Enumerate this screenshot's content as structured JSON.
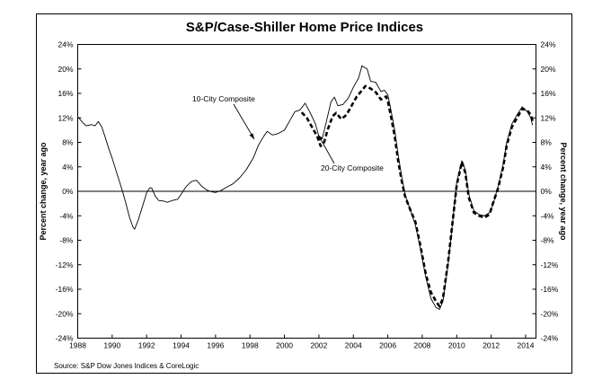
{
  "chart_data": {
    "type": "line",
    "title": "S&P/Case-Shiller Home Price Indices",
    "ylabel_left": "Percent change, year ago",
    "ylabel_right": "Percent change, year ago",
    "xlabel": "",
    "source": "Source: S&P Dow Jones Indices & CoreLogic",
    "xlim": [
      1988,
      2014.6
    ],
    "ylim": [
      -24,
      24
    ],
    "x_ticks": [
      "1988",
      "1990",
      "1992",
      "1994",
      "1996",
      "1998",
      "2000",
      "2002",
      "2004",
      "2006",
      "2008",
      "2010",
      "2012",
      "2014"
    ],
    "y_ticks": [
      "24%",
      "20%",
      "16%",
      "12%",
      "8%",
      "4%",
      "0%",
      "-4%",
      "-8%",
      "-12%",
      "-16%",
      "-20%",
      "-24%"
    ],
    "annotations": [
      {
        "text": "10-City Composite",
        "series": "10-City Composite"
      },
      {
        "text": "20-City Composite",
        "series": "20-City Composite"
      }
    ],
    "series": [
      {
        "name": "10-City Composite",
        "style": "solid",
        "color": "#000000",
        "points": [
          [
            1988.0,
            12.2
          ],
          [
            1988.3,
            11.2
          ],
          [
            1988.5,
            10.7
          ],
          [
            1988.8,
            10.9
          ],
          [
            1989.0,
            10.7
          ],
          [
            1989.2,
            11.4
          ],
          [
            1989.4,
            10.5
          ],
          [
            1989.6,
            8.8
          ],
          [
            1989.8,
            7.0
          ],
          [
            1990.0,
            5.4
          ],
          [
            1990.2,
            3.6
          ],
          [
            1990.4,
            1.8
          ],
          [
            1990.6,
            0.0
          ],
          [
            1990.8,
            -2.0
          ],
          [
            1991.0,
            -4.2
          ],
          [
            1991.2,
            -5.8
          ],
          [
            1991.3,
            -6.2
          ],
          [
            1991.5,
            -4.8
          ],
          [
            1991.7,
            -3.0
          ],
          [
            1991.9,
            -1.2
          ],
          [
            1992.0,
            -0.2
          ],
          [
            1992.2,
            0.6
          ],
          [
            1992.3,
            0.5
          ],
          [
            1992.5,
            -0.8
          ],
          [
            1992.7,
            -1.5
          ],
          [
            1993.0,
            -1.6
          ],
          [
            1993.2,
            -1.8
          ],
          [
            1993.5,
            -1.5
          ],
          [
            1993.8,
            -1.3
          ],
          [
            1994.0,
            -0.5
          ],
          [
            1994.3,
            0.8
          ],
          [
            1994.6,
            1.6
          ],
          [
            1994.9,
            1.8
          ],
          [
            1995.2,
            0.8
          ],
          [
            1995.5,
            0.2
          ],
          [
            1995.8,
            -0.1
          ],
          [
            1996.0,
            -0.2
          ],
          [
            1996.3,
            0.1
          ],
          [
            1996.6,
            0.6
          ],
          [
            1997.0,
            1.2
          ],
          [
            1997.4,
            2.2
          ],
          [
            1997.8,
            3.6
          ],
          [
            1998.2,
            5.5
          ],
          [
            1998.5,
            7.6
          ],
          [
            1998.8,
            9.0
          ],
          [
            1999.0,
            9.8
          ],
          [
            1999.3,
            9.2
          ],
          [
            1999.6,
            9.4
          ],
          [
            2000.0,
            10.0
          ],
          [
            2000.3,
            11.5
          ],
          [
            2000.6,
            13.0
          ],
          [
            2000.9,
            13.3
          ],
          [
            2001.2,
            14.4
          ],
          [
            2001.5,
            12.8
          ],
          [
            2001.8,
            11.0
          ],
          [
            2002.0,
            9.0
          ],
          [
            2002.2,
            8.7
          ],
          [
            2002.4,
            11.0
          ],
          [
            2002.7,
            14.6
          ],
          [
            2002.9,
            15.4
          ],
          [
            2003.1,
            14.0
          ],
          [
            2003.4,
            14.2
          ],
          [
            2003.7,
            15.2
          ],
          [
            2004.0,
            17.0
          ],
          [
            2004.3,
            18.5
          ],
          [
            2004.5,
            20.5
          ],
          [
            2004.8,
            20.0
          ],
          [
            2005.0,
            18.0
          ],
          [
            2005.3,
            17.8
          ],
          [
            2005.6,
            16.3
          ],
          [
            2005.8,
            16.5
          ],
          [
            2006.0,
            15.8
          ],
          [
            2006.2,
            13.0
          ],
          [
            2006.4,
            10.0
          ],
          [
            2006.6,
            6.0
          ],
          [
            2006.8,
            2.5
          ],
          [
            2007.0,
            -0.5
          ],
          [
            2007.3,
            -3.0
          ],
          [
            2007.6,
            -5.5
          ],
          [
            2007.9,
            -9.5
          ],
          [
            2008.2,
            -14.0
          ],
          [
            2008.5,
            -17.5
          ],
          [
            2008.8,
            -19.0
          ],
          [
            2009.0,
            -19.3
          ],
          [
            2009.2,
            -18.0
          ],
          [
            2009.5,
            -12.0
          ],
          [
            2009.8,
            -4.0
          ],
          [
            2010.0,
            1.5
          ],
          [
            2010.3,
            5.0
          ],
          [
            2010.5,
            3.5
          ],
          [
            2010.7,
            -0.5
          ],
          [
            2011.0,
            -3.2
          ],
          [
            2011.3,
            -3.8
          ],
          [
            2011.6,
            -4.0
          ],
          [
            2011.9,
            -3.5
          ],
          [
            2012.1,
            -2.2
          ],
          [
            2012.4,
            0.8
          ],
          [
            2012.7,
            4.5
          ],
          [
            2012.9,
            8.0
          ],
          [
            2013.2,
            11.0
          ],
          [
            2013.5,
            12.5
          ],
          [
            2013.8,
            13.8
          ],
          [
            2014.1,
            13.0
          ],
          [
            2014.3,
            12.0
          ],
          [
            2014.4,
            10.8
          ]
        ]
      },
      {
        "name": "20-City Composite",
        "style": "dashed",
        "color": "#000000",
        "points": [
          [
            2001.0,
            12.9
          ],
          [
            2001.3,
            12.0
          ],
          [
            2001.6,
            10.5
          ],
          [
            2001.9,
            9.0
          ],
          [
            2002.1,
            7.4
          ],
          [
            2002.3,
            8.0
          ],
          [
            2002.5,
            10.0
          ],
          [
            2002.8,
            12.3
          ],
          [
            2003.0,
            12.8
          ],
          [
            2003.3,
            11.8
          ],
          [
            2003.6,
            12.5
          ],
          [
            2003.9,
            14.0
          ],
          [
            2004.2,
            15.5
          ],
          [
            2004.5,
            16.5
          ],
          [
            2004.7,
            17.2
          ],
          [
            2005.0,
            16.8
          ],
          [
            2005.3,
            16.2
          ],
          [
            2005.6,
            15.0
          ],
          [
            2005.9,
            15.5
          ],
          [
            2006.0,
            14.8
          ],
          [
            2006.2,
            12.0
          ],
          [
            2006.4,
            9.0
          ],
          [
            2006.6,
            5.0
          ],
          [
            2006.8,
            1.8
          ],
          [
            2007.0,
            -0.8
          ],
          [
            2007.3,
            -3.0
          ],
          [
            2007.6,
            -5.0
          ],
          [
            2007.9,
            -9.0
          ],
          [
            2008.2,
            -13.5
          ],
          [
            2008.5,
            -16.5
          ],
          [
            2008.8,
            -18.0
          ],
          [
            2009.0,
            -18.8
          ],
          [
            2009.2,
            -17.5
          ],
          [
            2009.5,
            -11.5
          ],
          [
            2009.8,
            -4.0
          ],
          [
            2010.0,
            1.0
          ],
          [
            2010.3,
            4.8
          ],
          [
            2010.5,
            3.0
          ],
          [
            2010.7,
            -1.0
          ],
          [
            2011.0,
            -3.5
          ],
          [
            2011.3,
            -4.0
          ],
          [
            2011.6,
            -4.3
          ],
          [
            2011.9,
            -3.8
          ],
          [
            2012.1,
            -2.0
          ],
          [
            2012.4,
            0.5
          ],
          [
            2012.7,
            4.0
          ],
          [
            2012.9,
            7.5
          ],
          [
            2013.2,
            10.5
          ],
          [
            2013.5,
            12.0
          ],
          [
            2013.8,
            13.5
          ],
          [
            2014.1,
            13.2
          ],
          [
            2014.3,
            12.5
          ],
          [
            2014.4,
            11.5
          ]
        ]
      }
    ]
  }
}
